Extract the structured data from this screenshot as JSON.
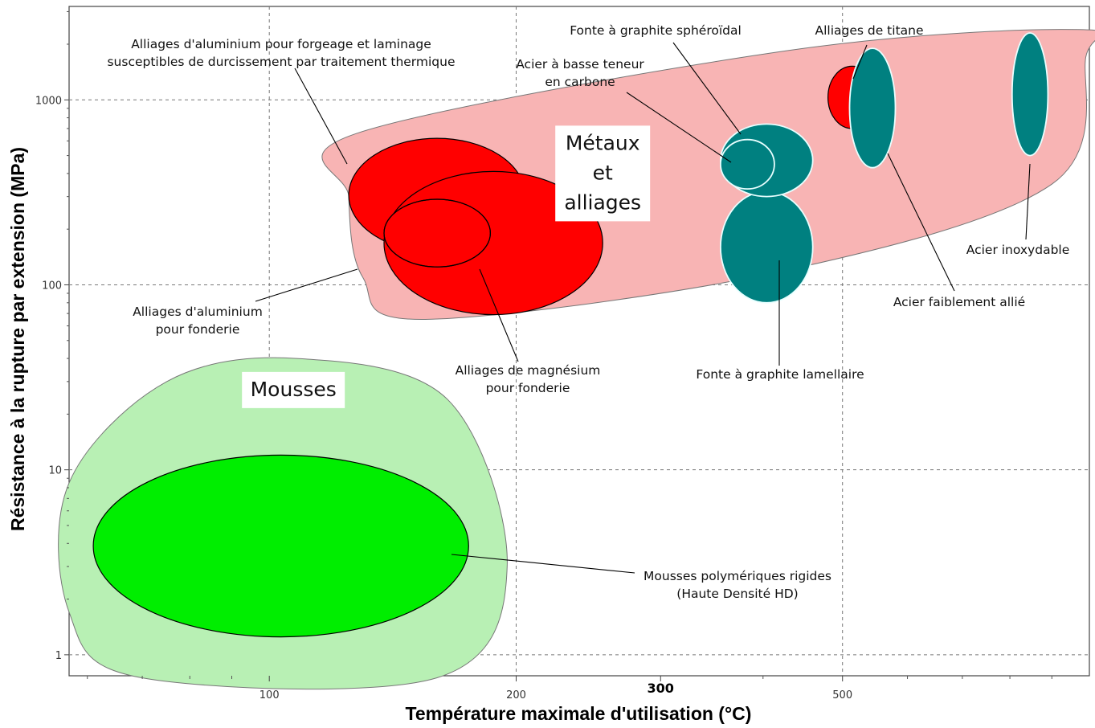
{
  "chart_data": {
    "type": "bubble",
    "xlabel": "Température maximale d'utilisation (°C)",
    "ylabel": "Résistance à la rupture par extension (MPa)",
    "x_scale": "log",
    "y_scale": "log",
    "xlim": [
      57,
      1000
    ],
    "ylim": [
      0.77,
      3200
    ],
    "grid": true,
    "x_ticks": [
      {
        "value": 100,
        "label": "100",
        "bold": false
      },
      {
        "value": 200,
        "label": "200",
        "bold": false
      },
      {
        "value": 300,
        "label": "300",
        "bold": true
      },
      {
        "value": 500,
        "label": "500",
        "bold": false
      }
    ],
    "x_minor_ticks": [
      60,
      70,
      80,
      90,
      400,
      600,
      700,
      800,
      900
    ],
    "y_ticks": [
      {
        "value": 1,
        "label": "1"
      },
      {
        "value": 10,
        "label": "10"
      },
      {
        "value": 100,
        "label": "100"
      },
      {
        "value": 1000,
        "label": "1000"
      }
    ],
    "envelopes": [
      {
        "name": "Métaux et alliages",
        "label_lines": [
          "Métaux",
          "et",
          "alliages"
        ],
        "label_at": [
          255,
          400
        ],
        "color": "#f8b4b4",
        "outline": "#777777",
        "points": [
          [
            128,
            660
          ],
          [
            430,
            1850
          ],
          [
            970,
            2400
          ],
          [
            990,
            1700
          ],
          [
            900,
            350
          ],
          [
            420,
            118
          ],
          [
            155,
            65
          ],
          [
            130,
            110
          ],
          [
            125,
            300
          ]
        ]
      },
      {
        "name": "Mousses",
        "label_lines": [
          "Mousses"
        ],
        "label_at": [
          107,
          27
        ],
        "color": "#b8f0b4",
        "outline": "#777777",
        "points": [
          [
            57,
            8.5
          ],
          [
            75,
            30
          ],
          [
            108,
            40
          ],
          [
            165,
            24
          ],
          [
            195,
            3
          ],
          [
            160,
            0.75
          ],
          [
            70,
            0.75
          ],
          [
            57,
            1.7
          ]
        ]
      }
    ],
    "families": [
      {
        "name": "Alliages d'aluminium pour forgeage et laminage susceptibles de durcissement par traitement thermique",
        "color": "#ff0000",
        "x_range": [
          125,
          205
        ],
        "y_range": [
          150,
          620
        ]
      },
      {
        "name": "Alliages de magnésium pour fonderie",
        "color": "#ff0000",
        "x_range": [
          138,
          255
        ],
        "y_range": [
          69,
          410
        ]
      },
      {
        "name": "Alliages d'aluminium pour fonderie",
        "color": "#ff0000",
        "x_range": [
          138,
          186
        ],
        "y_range": [
          125,
          290
        ]
      },
      {
        "name": "Fonte à graphite lamellaire",
        "color": "#008080",
        "x_range": [
          355,
          460
        ],
        "y_range": [
          80,
          320
        ]
      },
      {
        "name": "Fonte à graphite sphéroïdal",
        "color": "#008080",
        "x_range": [
          355,
          460
        ],
        "y_range": [
          300,
          740
        ]
      },
      {
        "name": "Acier à basse teneur en carbone",
        "color": "#008080",
        "x_range": [
          355,
          413
        ],
        "y_range": [
          330,
          610
        ]
      },
      {
        "name": "Alliages de titane",
        "color": "#ff0000",
        "x_range": [
          480,
          550
        ],
        "y_range": [
          700,
          1520
        ]
      },
      {
        "name": "Acier faiblement allié",
        "color": "#008080",
        "x_range": [
          510,
          580
        ],
        "y_range": [
          430,
          1900
        ]
      },
      {
        "name": "Acier inoxydable",
        "color": "#008080",
        "x_range": [
          805,
          890
        ],
        "y_range": [
          500,
          2300
        ]
      },
      {
        "name": "Mousses polymériques rigides (Haute Densité HD)",
        "color": "#00ee00",
        "x_range": [
          61,
          175
        ],
        "y_range": [
          1.25,
          12
        ]
      }
    ],
    "annotations": [
      {
        "lines": [
          "Alliages d'aluminium pour forgeage et laminage",
          "susceptibles de durcissement par traitement thermique"
        ],
        "anchor": "middle"
      },
      {
        "lines": [
          "Fonte à graphite sphéroïdal"
        ],
        "anchor": "middle"
      },
      {
        "lines": [
          "Alliages de titane"
        ],
        "anchor": "middle"
      },
      {
        "lines": [
          "Acier à basse teneur",
          "en carbone"
        ],
        "anchor": "middle"
      },
      {
        "lines": [
          "Acier inoxydable"
        ],
        "anchor": "middle"
      },
      {
        "lines": [
          "Acier faiblement allié"
        ],
        "anchor": "middle"
      },
      {
        "lines": [
          "Alliages d'aluminium",
          "pour fonderie"
        ],
        "anchor": "middle"
      },
      {
        "lines": [
          "Alliages de magnésium",
          "pour fonderie"
        ],
        "anchor": "middle"
      },
      {
        "lines": [
          "Fonte à graphite lamellaire"
        ],
        "anchor": "middle"
      },
      {
        "lines": [
          "Mousses polymériques rigides",
          "(Haute Densité HD)"
        ],
        "anchor": "middle"
      }
    ]
  }
}
